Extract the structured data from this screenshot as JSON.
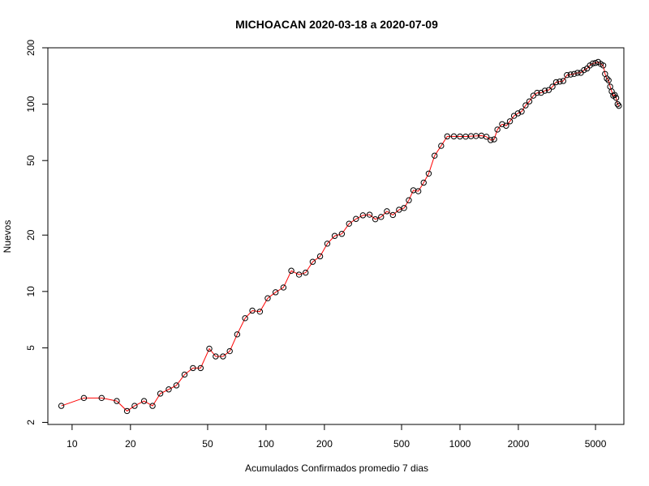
{
  "chart_data": {
    "type": "scatter",
    "title": "MICHOACAN 2020-03-18 a 2020-07-09",
    "xlabel": "Acumulados Confirmados promedio  7  dias",
    "ylabel": "Nuevos",
    "x_scale": "log",
    "y_scale": "log",
    "xlim": [
      7.5,
      7000
    ],
    "ylim": [
      1.95,
      200
    ],
    "x_ticks": [
      10,
      20,
      50,
      100,
      200,
      500,
      1000,
      2000,
      5000
    ],
    "x_tick_labels": [
      "10",
      "20",
      "50",
      "100",
      "200",
      "500",
      "1000",
      "2000",
      "5000"
    ],
    "y_ticks": [
      2,
      5,
      10,
      20,
      50,
      100,
      200
    ],
    "y_tick_labels": [
      "2",
      "5",
      "10",
      "20",
      "50",
      "100",
      "200"
    ],
    "grid": false,
    "series": [
      {
        "line_color": "#ff0000",
        "marker_color": "#000000",
        "marker_fill": "#ff0000",
        "points": [
          [
            8.8,
            2.45
          ],
          [
            11.5,
            2.7
          ],
          [
            14.2,
            2.7
          ],
          [
            17.0,
            2.6
          ],
          [
            19.2,
            2.3
          ],
          [
            21.0,
            2.45
          ],
          [
            23.5,
            2.6
          ],
          [
            26.0,
            2.45
          ],
          [
            28.5,
            2.85
          ],
          [
            31.5,
            3.0
          ],
          [
            34.5,
            3.15
          ],
          [
            38.0,
            3.6
          ],
          [
            42.0,
            3.9
          ],
          [
            46.0,
            3.9
          ],
          [
            51.0,
            4.95
          ],
          [
            55.0,
            4.5
          ],
          [
            60.0,
            4.5
          ],
          [
            65.0,
            4.8
          ],
          [
            71.0,
            5.9
          ],
          [
            78.0,
            7.2
          ],
          [
            85.0,
            7.9
          ],
          [
            93.0,
            7.8
          ],
          [
            102.0,
            9.2
          ],
          [
            112.0,
            9.9
          ],
          [
            123.0,
            10.5
          ],
          [
            135.0,
            12.9
          ],
          [
            148.0,
            12.3
          ],
          [
            160.0,
            12.6
          ],
          [
            174.0,
            14.4
          ],
          [
            190.0,
            15.4
          ],
          [
            207.0,
            18.0
          ],
          [
            226.0,
            19.8
          ],
          [
            246.0,
            20.3
          ],
          [
            268.0,
            23.0
          ],
          [
            291.0,
            24.4
          ],
          [
            316.0,
            25.5
          ],
          [
            342.0,
            25.7
          ],
          [
            366.0,
            24.3
          ],
          [
            392.0,
            25.0
          ],
          [
            420.0,
            26.8
          ],
          [
            451.0,
            25.6
          ],
          [
            485.0,
            27.3
          ],
          [
            515.0,
            27.9
          ],
          [
            545.0,
            30.7
          ],
          [
            575.0,
            34.7
          ],
          [
            610.0,
            34.3
          ],
          [
            650.0,
            38.1
          ],
          [
            690.0,
            42.6
          ],
          [
            740.0,
            53.1
          ],
          [
            800.0,
            59.9
          ],
          [
            860.0,
            67.3
          ],
          [
            930.0,
            67.3
          ],
          [
            1000.0,
            67.2
          ],
          [
            1070.0,
            67.1
          ],
          [
            1140.0,
            67.5
          ],
          [
            1210.0,
            67.6
          ],
          [
            1290.0,
            67.9
          ],
          [
            1370.0,
            67.0
          ],
          [
            1440.0,
            64.3
          ],
          [
            1500.0,
            64.9
          ],
          [
            1560.0,
            73.2
          ],
          [
            1650.0,
            78.2
          ],
          [
            1730.0,
            76.7
          ],
          [
            1810.0,
            81.0
          ],
          [
            1900.0,
            86.6
          ],
          [
            1990.0,
            89.3
          ],
          [
            2080.0,
            91.3
          ],
          [
            2180.0,
            98.5
          ],
          [
            2280.0,
            103.5
          ],
          [
            2390.0,
            111.0
          ],
          [
            2500.0,
            115.0
          ],
          [
            2620.0,
            115.0
          ],
          [
            2740.0,
            118.0
          ],
          [
            2870.0,
            119.0
          ],
          [
            3000.0,
            124.0
          ],
          [
            3130.0,
            131.0
          ],
          [
            3270.0,
            132.0
          ],
          [
            3410.0,
            133.0
          ],
          [
            3560.0,
            143.0
          ],
          [
            3720.0,
            144.0
          ],
          [
            3880.0,
            145.0
          ],
          [
            4040.0,
            147.0
          ],
          [
            4200.0,
            147.0
          ],
          [
            4360.0,
            152.0
          ],
          [
            4520.0,
            155.0
          ],
          [
            4680.0,
            161.0
          ],
          [
            4840.0,
            165.0
          ],
          [
            5000.0,
            166.0
          ],
          [
            5160.0,
            168.0
          ],
          [
            5320.0,
            164.0
          ],
          [
            5480.0,
            161.0
          ],
          [
            5600.0,
            145.0
          ],
          [
            5720.0,
            137.0
          ],
          [
            5840.0,
            134.0
          ],
          [
            5950.0,
            124.0
          ],
          [
            6060.0,
            117.0
          ],
          [
            6170.0,
            111.0
          ],
          [
            6280.0,
            112.0
          ],
          [
            6390.0,
            108.0
          ],
          [
            6500.0,
            100.0
          ],
          [
            6600.0,
            98.0
          ]
        ]
      }
    ]
  }
}
